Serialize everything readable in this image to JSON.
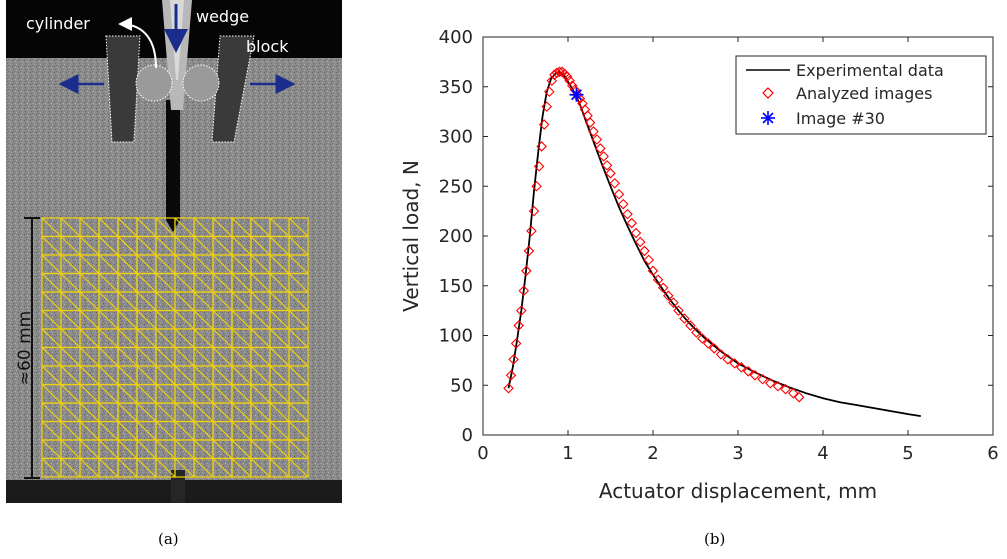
{
  "captions": {
    "a": "(a)",
    "b": "(b)"
  },
  "photo": {
    "labels": {
      "cylinder": "cylinder",
      "wedge": "wedge",
      "block": "block",
      "scale": "≈60 mm"
    },
    "colors": {
      "mesh": "#f0d20c",
      "arrow": "#1a2d8c",
      "specimen": "#7f7f7f",
      "background": "#050505"
    }
  },
  "chart_data": {
    "type": "line",
    "xlabel": "Actuator displacement, mm",
    "ylabel": "Vertical load, N",
    "xlim": [
      0,
      6
    ],
    "ylim": [
      0,
      400
    ],
    "xticks": [
      0,
      1,
      2,
      3,
      4,
      5,
      6
    ],
    "yticks": [
      0,
      50,
      100,
      150,
      200,
      250,
      300,
      350,
      400
    ],
    "grid": false,
    "legend_position": "top-right",
    "series": [
      {
        "name": "Experimental data",
        "style": "line",
        "color": "#000000",
        "x": [
          0.3,
          0.35,
          0.4,
          0.45,
          0.5,
          0.55,
          0.6,
          0.65,
          0.7,
          0.75,
          0.8,
          0.85,
          0.9,
          0.95,
          1.0,
          1.05,
          1.1,
          1.15,
          1.2,
          1.3,
          1.4,
          1.5,
          1.6,
          1.7,
          1.8,
          1.9,
          2.0,
          2.1,
          2.2,
          2.3,
          2.4,
          2.5,
          2.6,
          2.7,
          2.8,
          2.9,
          3.0,
          3.2,
          3.4,
          3.6,
          3.8,
          4.0,
          4.2,
          4.4,
          4.6,
          4.8,
          5.0,
          5.15
        ],
        "y": [
          47,
          68,
          95,
          125,
          160,
          200,
          245,
          285,
          320,
          345,
          358,
          363,
          365,
          362,
          355,
          348,
          340,
          330,
          318,
          295,
          272,
          250,
          229,
          210,
          192,
          175,
          161,
          148,
          136,
          125,
          115,
          106,
          98,
          91,
          84,
          78,
          72,
          63,
          55,
          48,
          42,
          37,
          33,
          30,
          27,
          24,
          21,
          19
        ]
      },
      {
        "name": "Analyzed images",
        "style": "diamond",
        "color": "#ff0000",
        "x": [
          0.3,
          0.33,
          0.36,
          0.39,
          0.42,
          0.45,
          0.48,
          0.51,
          0.54,
          0.57,
          0.6,
          0.63,
          0.66,
          0.69,
          0.72,
          0.75,
          0.78,
          0.81,
          0.84,
          0.87,
          0.9,
          0.93,
          0.96,
          0.99,
          1.02,
          1.05,
          1.08,
          1.11,
          1.14,
          1.17,
          1.2,
          1.23,
          1.26,
          1.3,
          1.34,
          1.38,
          1.42,
          1.46,
          1.5,
          1.55,
          1.6,
          1.65,
          1.7,
          1.75,
          1.8,
          1.85,
          1.9,
          1.95,
          2.0,
          2.06,
          2.12,
          2.18,
          2.24,
          2.3,
          2.37,
          2.44,
          2.51,
          2.58,
          2.65,
          2.72,
          2.8,
          2.88,
          2.96,
          3.04,
          3.12,
          3.2,
          3.29,
          3.38,
          3.47,
          3.56,
          3.65,
          3.72
        ],
        "y": [
          47,
          60,
          76,
          92,
          110,
          125,
          145,
          165,
          185,
          205,
          225,
          250,
          270,
          290,
          312,
          330,
          345,
          356,
          362,
          364,
          365,
          365,
          363,
          360,
          356,
          351,
          347,
          342,
          338,
          333,
          327,
          321,
          314,
          305,
          297,
          288,
          280,
          271,
          263,
          253,
          242,
          232,
          222,
          213,
          203,
          194,
          185,
          176,
          165,
          156,
          148,
          140,
          133,
          125,
          117,
          110,
          103,
          97,
          92,
          87,
          81,
          76,
          72,
          68,
          64,
          60,
          56,
          52,
          49,
          46,
          42,
          38
        ]
      },
      {
        "name": "Image #30",
        "style": "asterisk",
        "color": "#0000ff",
        "x": [
          1.1
        ],
        "y": [
          342
        ]
      }
    ]
  }
}
